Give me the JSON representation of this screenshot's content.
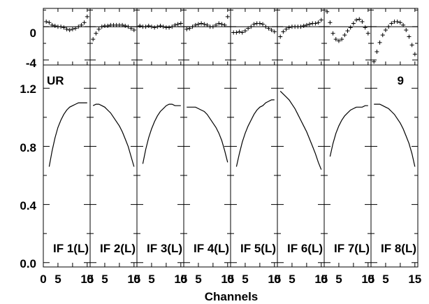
{
  "chart_data": {
    "type": "line",
    "xlabel": "Channels",
    "ylabel": "",
    "corner_left": "UR",
    "corner_right": "9",
    "xlim": [
      0,
      16
    ],
    "x_ticks": [
      "0",
      "5",
      "15"
    ],
    "top_ylim": [
      -4.6,
      2.2
    ],
    "top_y_ticks": [
      "0",
      "-4"
    ],
    "bottom_ylim": [
      -0.03,
      1.36
    ],
    "bottom_y_ticks": [
      "1.2",
      "0.8",
      "0.4",
      "0.0"
    ],
    "panels": [
      {
        "label": "IF 1(L)",
        "bandpass": {
          "x": [
            2,
            3,
            4,
            5,
            6,
            7,
            8,
            9,
            10,
            11,
            12,
            13,
            14,
            15
          ],
          "y": [
            0.66,
            0.77,
            0.86,
            0.93,
            0.98,
            1.02,
            1.05,
            1.07,
            1.08,
            1.09,
            1.1,
            1.1,
            1.1,
            1.1
          ]
        },
        "residuals": {
          "x": [
            1,
            2,
            3,
            4,
            5,
            6,
            7,
            8,
            9,
            10,
            11,
            12,
            13,
            14,
            15
          ],
          "y": [
            0.6,
            0.5,
            0.2,
            0.1,
            0.0,
            0.0,
            -0.1,
            -0.3,
            -0.4,
            -0.3,
            -0.2,
            0.0,
            0.2,
            0.5,
            1.2
          ]
        }
      },
      {
        "label": "IF 2(L)",
        "bandpass": {
          "x": [
            1,
            2,
            3,
            4,
            5,
            6,
            7,
            8,
            9,
            10,
            11,
            12,
            13,
            14,
            15
          ],
          "y": [
            1.08,
            1.09,
            1.09,
            1.08,
            1.07,
            1.05,
            1.03,
            1.0,
            0.97,
            0.94,
            0.9,
            0.85,
            0.8,
            0.73,
            0.66
          ]
        },
        "residuals": {
          "x": [
            1,
            2,
            3,
            4,
            5,
            6,
            7,
            8,
            9,
            10,
            11,
            12,
            13,
            14,
            15
          ],
          "y": [
            -1.5,
            -0.8,
            -0.3,
            0.0,
            0.1,
            0.1,
            0.2,
            0.2,
            0.2,
            0.2,
            0.2,
            0.1,
            0.0,
            -0.2,
            -0.4
          ]
        }
      },
      {
        "label": "IF 3(L)",
        "bandpass": {
          "x": [
            2,
            3,
            4,
            5,
            6,
            7,
            8,
            9,
            10,
            11,
            12,
            13,
            14,
            15
          ],
          "y": [
            0.68,
            0.78,
            0.86,
            0.92,
            0.97,
            1.01,
            1.04,
            1.06,
            1.08,
            1.09,
            1.09,
            1.08,
            1.08,
            1.08
          ]
        },
        "residuals": {
          "x": [
            1,
            2,
            3,
            4,
            5,
            6,
            7,
            8,
            9,
            10,
            11,
            12,
            13,
            14,
            15
          ],
          "y": [
            0.1,
            0.0,
            0.0,
            0.1,
            0.0,
            -0.1,
            0.0,
            0.1,
            0.0,
            -0.1,
            -0.1,
            0.0,
            0.2,
            0.3,
            0.4
          ]
        }
      },
      {
        "label": "IF 4(L)",
        "bandpass": {
          "x": [
            1,
            2,
            3,
            4,
            5,
            6,
            7,
            8,
            9,
            10,
            11,
            12,
            13,
            14,
            15
          ],
          "y": [
            1.07,
            1.07,
            1.07,
            1.07,
            1.06,
            1.05,
            1.04,
            1.02,
            0.99,
            0.96,
            0.93,
            0.89,
            0.84,
            0.77,
            0.69
          ]
        },
        "residuals": {
          "x": [
            1,
            2,
            3,
            4,
            5,
            6,
            7,
            8,
            9,
            10,
            11,
            12,
            13,
            14,
            15
          ],
          "y": [
            -0.3,
            -0.2,
            0.0,
            0.2,
            0.3,
            0.4,
            0.3,
            0.2,
            0.0,
            0.0,
            0.2,
            0.4,
            0.3,
            0.2,
            1.2
          ]
        }
      },
      {
        "label": "IF 5(L)",
        "bandpass": {
          "x": [
            2,
            3,
            4,
            5,
            6,
            7,
            8,
            9,
            10,
            11,
            12,
            13,
            14,
            15
          ],
          "y": [
            0.66,
            0.75,
            0.83,
            0.89,
            0.94,
            0.98,
            1.02,
            1.05,
            1.07,
            1.08,
            1.1,
            1.11,
            1.12,
            1.12
          ]
        },
        "residuals": {
          "x": [
            1,
            2,
            3,
            4,
            5,
            6,
            7,
            8,
            9,
            10,
            11,
            12,
            13,
            14,
            15
          ],
          "y": [
            -0.7,
            -0.7,
            -0.6,
            -0.7,
            -0.5,
            -0.2,
            0.0,
            0.3,
            0.4,
            0.4,
            0.3,
            0.0,
            -0.2,
            -0.4,
            -0.6
          ]
        }
      },
      {
        "label": "IF 6(L)",
        "bandpass": {
          "x": [
            1,
            2,
            3,
            4,
            5,
            6,
            7,
            8,
            9,
            10,
            11,
            12,
            13,
            14,
            15
          ],
          "y": [
            1.18,
            1.16,
            1.14,
            1.12,
            1.09,
            1.06,
            1.02,
            0.98,
            0.94,
            0.9,
            0.85,
            0.8,
            0.75,
            0.69,
            0.64
          ]
        },
        "residuals": {
          "x": [
            1,
            2,
            3,
            4,
            5,
            6,
            7,
            8,
            9,
            10,
            11,
            12,
            13,
            14,
            15
          ],
          "y": [
            -1.2,
            -0.6,
            -0.3,
            -0.1,
            0.0,
            0.0,
            0.0,
            0.0,
            0.1,
            0.2,
            0.3,
            0.4,
            0.4,
            0.5,
            0.8
          ]
        }
      },
      {
        "label": "IF 7(L)",
        "bandpass": {
          "x": [
            2,
            3,
            4,
            5,
            6,
            7,
            8,
            9,
            10,
            11,
            12,
            13,
            14,
            15
          ],
          "y": [
            0.73,
            0.82,
            0.89,
            0.94,
            0.98,
            1.01,
            1.03,
            1.05,
            1.06,
            1.07,
            1.07,
            1.07,
            1.08,
            1.08
          ]
        },
        "residuals": {
          "x": [
            1,
            2,
            3,
            4,
            5,
            6,
            7,
            8,
            9,
            10,
            11,
            12,
            13,
            14,
            15
          ],
          "y": [
            1.8,
            0.5,
            -0.8,
            -1.5,
            -1.7,
            -1.5,
            -1.0,
            -0.5,
            -0.1,
            0.4,
            0.8,
            0.9,
            0.6,
            -0.1,
            -0.8
          ]
        }
      },
      {
        "label": "IF 8(L)",
        "bandpass": {
          "x": [
            1,
            2,
            3,
            4,
            5,
            6,
            7,
            8,
            9,
            10,
            11,
            12,
            13,
            14,
            15
          ],
          "y": [
            1.09,
            1.09,
            1.09,
            1.08,
            1.07,
            1.06,
            1.04,
            1.02,
            0.99,
            0.96,
            0.92,
            0.87,
            0.82,
            0.75,
            0.66
          ]
        },
        "residuals": {
          "x": [
            1,
            2,
            3,
            4,
            5,
            6,
            7,
            8,
            9,
            10,
            11,
            12,
            13,
            14,
            15
          ],
          "y": [
            -4.2,
            -3.0,
            -1.9,
            -1.0,
            -0.4,
            0.0,
            0.4,
            0.6,
            0.6,
            0.5,
            0.2,
            -0.4,
            -1.2,
            -2.2,
            -3.3
          ]
        }
      }
    ]
  }
}
